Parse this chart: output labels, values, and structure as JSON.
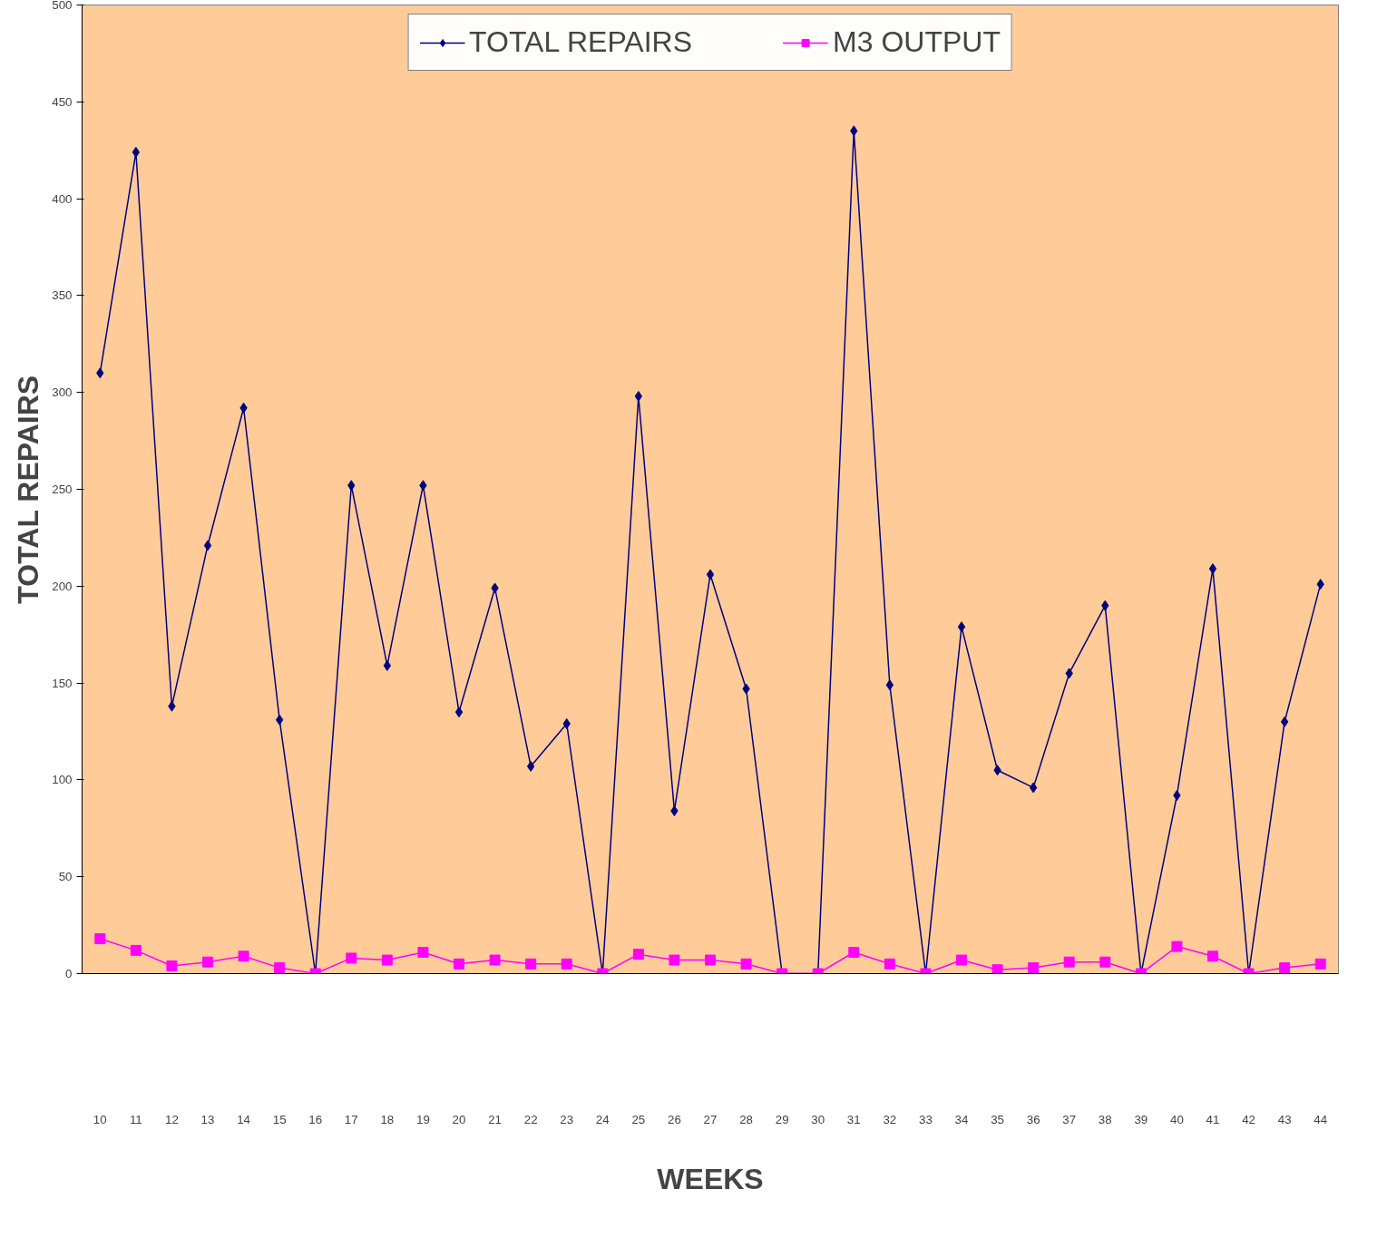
{
  "chart_data": {
    "type": "line",
    "xlabel": "WEEKS",
    "ylabel": "TOTAL REPAIRS",
    "categories": [
      "10",
      "11",
      "12",
      "13",
      "14",
      "15",
      "16",
      "17",
      "18",
      "19",
      "20",
      "21",
      "22",
      "23",
      "24",
      "25",
      "26",
      "27",
      "28",
      "29",
      "30",
      "31",
      "32",
      "33",
      "34",
      "35",
      "36",
      "37",
      "38",
      "39",
      "40",
      "41",
      "42",
      "43",
      "44"
    ],
    "series": [
      {
        "name": "TOTAL REPAIRS",
        "color": "#000080",
        "marker": "diamond",
        "values": [
          310,
          424,
          138,
          221,
          292,
          131,
          0,
          252,
          159,
          252,
          135,
          199,
          107,
          129,
          0,
          298,
          84,
          206,
          147,
          0,
          0,
          435,
          149,
          0,
          179,
          105,
          96,
          155,
          190,
          0,
          92,
          209,
          0,
          130,
          201
        ]
      },
      {
        "name": "M3 OUTPUT",
        "color": "#ff00ff",
        "marker": "square",
        "values": [
          18,
          12,
          4,
          6,
          9,
          3,
          0,
          8,
          7,
          11,
          5,
          7,
          5,
          5,
          0,
          10,
          7,
          7,
          5,
          0,
          0,
          11,
          5,
          0,
          7,
          2,
          3,
          6,
          6,
          0,
          14,
          9,
          0,
          3,
          5
        ]
      }
    ],
    "ylim": [
      0,
      500
    ],
    "yticks": [
      0,
      50,
      100,
      150,
      200,
      250,
      300,
      350,
      400,
      450,
      500
    ],
    "grid": false,
    "legend": "top",
    "line_style": "solid"
  }
}
